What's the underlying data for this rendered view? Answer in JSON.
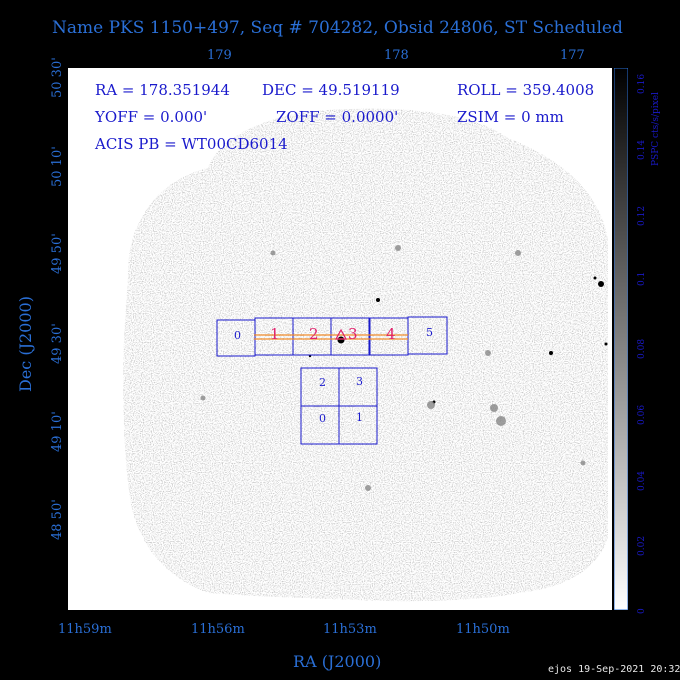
{
  "title": "Name PKS 1150+497, Seq # 704282, Obsid 24806, ST Scheduled",
  "info": {
    "ra": "RA = 178.351944",
    "dec": "DEC = 49.519119",
    "roll": "ROLL = 359.4008",
    "yoff": "YOFF =   0.000'",
    "zoff": "ZOFF =  0.0000'",
    "zsim": "ZSIM = 0 mm",
    "acis_pb": "ACIS PB = WT00CD6014"
  },
  "footer": "ejos 19-Sep-2021 20:32",
  "colorbar": {
    "label": "PSPC cts/s/pixel",
    "ticks": [
      "0",
      "0.02",
      "0.04",
      "0.06",
      "0.08",
      "0.1",
      "0.12",
      "0.14",
      "0.16"
    ]
  },
  "chips": {
    "s_array": [
      "0",
      "1",
      "2",
      "3",
      "4",
      "5"
    ],
    "i_array": [
      "2",
      "3",
      "0",
      "1"
    ]
  },
  "colors": {
    "axis": "#2a6fd6",
    "chip": "#1a1acc",
    "chip_label_red": "#e0206a",
    "slit": "#f08a2a"
  },
  "chart_data": {
    "type": "image",
    "xlabel": "RA (J2000)",
    "ylabel": "Dec (J2000)",
    "x_top_ticks": [
      "179",
      "178",
      "177"
    ],
    "x_bottom_ticks": [
      "11h59m",
      "11h56m",
      "11h53m",
      "11h50m"
    ],
    "y_ticks": [
      "50 30'",
      "50 10'",
      "49 50'",
      "49 30'",
      "49 10'",
      "48 50'"
    ]
  }
}
